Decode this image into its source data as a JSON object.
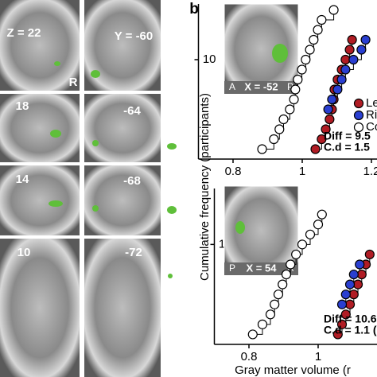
{
  "panel_label": "b",
  "slices": {
    "axial": [
      "Z = 22",
      "18",
      "14",
      "10"
    ],
    "axial_side": "R",
    "coronal": [
      "Y = -60",
      "-64",
      "-68",
      "-72"
    ]
  },
  "insets": [
    {
      "left": "A",
      "label": "X = -52",
      "right": "P"
    },
    {
      "left": "P",
      "label": "X = 54",
      "right": "A"
    }
  ],
  "y_label": "Cumulative frequency (participants)",
  "x_label": "Gray matter volume (r",
  "chart_data": [
    {
      "type": "scatter",
      "xlim": [
        0.7,
        1.25
      ],
      "ylim": [
        0,
        15.6
      ],
      "xticks": [
        0.8,
        1,
        1.2
      ],
      "yticks": [
        10
      ],
      "annotations": [
        "Diff = 9.5",
        "C.d = 1.5"
      ],
      "series": [
        {
          "name": "Le",
          "color": "#b01c24",
          "x": [
            1.038,
            1.056,
            1.068,
            1.079,
            1.086,
            1.091,
            1.093,
            1.102,
            1.114,
            1.125,
            1.137,
            1.144
          ],
          "values": [
            1,
            2,
            3,
            4,
            5,
            6,
            7,
            8,
            9,
            10,
            11,
            12
          ]
        },
        {
          "name": "Ri",
          "color": "#2a3fd1",
          "x": [
            1.075,
            1.086,
            1.102,
            1.114,
            1.125,
            1.148,
            1.171,
            1.183
          ],
          "values": [
            5,
            6,
            7,
            8,
            9,
            10,
            11,
            12
          ]
        },
        {
          "name": "Co",
          "color": "#ffffff",
          "x": [
            0.884,
            0.918,
            0.934,
            0.946,
            0.964,
            0.976,
            0.98,
            0.987,
            0.999,
            1.01,
            1.022,
            1.033,
            1.045,
            1.056,
            1.091
          ],
          "values": [
            1,
            2,
            3,
            4,
            5,
            6,
            7,
            8,
            9,
            10,
            11,
            12,
            13,
            14,
            15
          ]
        }
      ]
    },
    {
      "type": "scatter",
      "xlim": [
        0.7,
        1.25
      ],
      "ylim": [
        0,
        15.6
      ],
      "xticks": [
        0.8,
        1,
        1.2
      ],
      "yticks": [
        10
      ],
      "annotations": [
        "Diff = 10.6",
        "C.d = 1.1 ("
      ],
      "series": [
        {
          "color": "#b01c24",
          "x": [
            1.057,
            1.069,
            1.08,
            1.092,
            1.103,
            1.115,
            1.126,
            1.138,
            1.149
          ],
          "values": [
            1,
            2,
            3,
            4,
            5,
            6,
            7,
            8,
            9
          ]
        },
        {
          "color": "#2a3fd1",
          "x": [
            1.069,
            1.08,
            1.092,
            1.103,
            1.12
          ],
          "values": [
            4,
            5,
            6,
            7,
            8
          ]
        },
        {
          "color": "#ffffff",
          "x": [
            0.811,
            0.839,
            0.862,
            0.874,
            0.885,
            0.897,
            0.908,
            0.92,
            0.936,
            0.954,
            0.977,
            1.0,
            1.011
          ],
          "values": [
            1,
            2,
            3,
            4,
            5,
            6,
            7,
            8,
            9,
            10,
            11,
            12,
            13
          ]
        }
      ]
    }
  ]
}
